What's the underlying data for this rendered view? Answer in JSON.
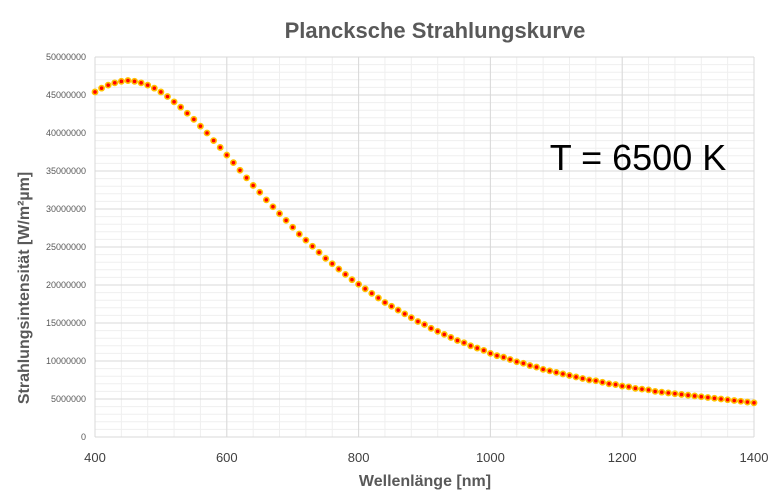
{
  "chart_data": {
    "type": "scatter",
    "title": "Plancksche Strahlungskurve",
    "xlabel": "Wellenlänge [nm]",
    "ylabel": "Strahlungsintensität [W/m²µm]",
    "annotation": "T = 6500 K",
    "xlim": [
      400,
      1400
    ],
    "ylim": [
      0,
      50000000
    ],
    "xticks": [
      400,
      600,
      800,
      1000,
      1200,
      1400
    ],
    "xtick_labels": [
      "400",
      "600",
      "800",
      "1000",
      "1200",
      "1400"
    ],
    "yticks": [
      0,
      5000000,
      10000000,
      15000000,
      20000000,
      25000000,
      30000000,
      35000000,
      40000000,
      45000000,
      50000000
    ],
    "ytick_labels": [
      "0",
      "5000000",
      "10000000",
      "15000000",
      "20000000",
      "25000000",
      "30000000",
      "35000000",
      "40000000",
      "45000000",
      "50000000"
    ],
    "grid": true,
    "marker_fill": "#ff0000",
    "marker_edge": "#ffc000",
    "series": [
      {
        "x": [
          400,
          410,
          420,
          430,
          440,
          450,
          460,
          470,
          480,
          490,
          500,
          510,
          520,
          530,
          540,
          550,
          560,
          570,
          580,
          590,
          600,
          610,
          620,
          630,
          640,
          650,
          660,
          670,
          680,
          690,
          700,
          710,
          720,
          730,
          740,
          750,
          760,
          770,
          780,
          790,
          800,
          810,
          820,
          830,
          840,
          850,
          860,
          870,
          880,
          890,
          900,
          910,
          920,
          930,
          940,
          950,
          960,
          970,
          980,
          990,
          1000,
          1010,
          1020,
          1030,
          1040,
          1050,
          1060,
          1070,
          1080,
          1090,
          1100,
          1110,
          1120,
          1130,
          1140,
          1150,
          1160,
          1170,
          1180,
          1190,
          1200,
          1210,
          1220,
          1230,
          1240,
          1250,
          1260,
          1270,
          1280,
          1290,
          1300,
          1310,
          1320,
          1330,
          1340,
          1350,
          1360,
          1370,
          1380,
          1390,
          1400
        ],
        "y": [
          45400000,
          45900000,
          46300000,
          46600000,
          46800000,
          46900000,
          46800000,
          46600000,
          46300000,
          45900000,
          45400000,
          44800000,
          44100000,
          43400000,
          42600000,
          41800000,
          40900000,
          40000000,
          39000000,
          38100000,
          37100000,
          36100000,
          35100000,
          34100000,
          33100000,
          32200000,
          31200000,
          30300000,
          29400000,
          28500000,
          27600000,
          26700000,
          25900000,
          25100000,
          24300000,
          23500000,
          22800000,
          22100000,
          21400000,
          20700000,
          20100000,
          19500000,
          18900000,
          18300000,
          17700000,
          17200000,
          16700000,
          16200000,
          15700000,
          15200000,
          14800000,
          14300000,
          13900000,
          13500000,
          13100000,
          12700000,
          12400000,
          12000000,
          11700000,
          11400000,
          11000000,
          10700000,
          10500000,
          10200000,
          9900000,
          9700000,
          9400000,
          9200000,
          8900000,
          8700000,
          8500000,
          8300000,
          8100000,
          7900000,
          7700000,
          7500000,
          7400000,
          7200000,
          7000000,
          6900000,
          6700000,
          6600000,
          6400000,
          6300000,
          6200000,
          6000000,
          5900000,
          5800000,
          5700000,
          5600000,
          5500000,
          5400000,
          5300000,
          5200000,
          5100000,
          5000000,
          4900000,
          4800000,
          4700000,
          4600000,
          4500000
        ]
      }
    ]
  }
}
